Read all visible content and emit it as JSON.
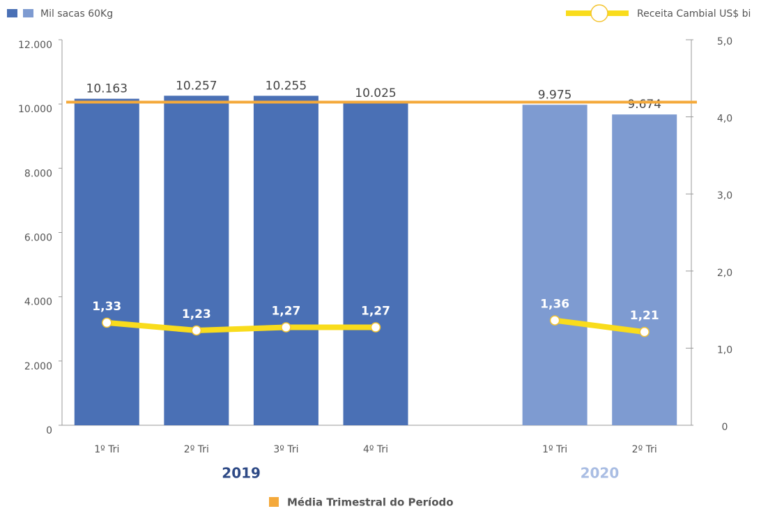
{
  "chart_data": {
    "type": "bar",
    "categories": [
      "1º Tri",
      "2º Tri",
      "3º Tri",
      "4º Tri",
      null,
      "1º Tri",
      "2º Tri"
    ],
    "groups": [
      {
        "label": "2019",
        "color": "#2e4a86"
      },
      {
        "label": "2020",
        "color": "#a9bde3"
      }
    ],
    "series": [
      {
        "name": "Mil sacas 60Kg",
        "type": "bar",
        "colors": [
          "#4a70b5",
          "#4a70b5",
          "#4a70b5",
          "#4a70b5",
          null,
          "#7e9bd1",
          "#7e9bd1"
        ],
        "values": [
          10163,
          10257,
          10255,
          10025,
          null,
          9975,
          9674
        ],
        "value_labels": [
          "10.163",
          "10.257",
          "10.255",
          "10.025",
          null,
          "9.975",
          "9.674"
        ]
      },
      {
        "name": "Receita Cambial US$ bi",
        "type": "line",
        "axis": "y2",
        "color": "#f9dc1c",
        "values": [
          1.33,
          1.23,
          1.27,
          1.27,
          null,
          1.36,
          1.21
        ],
        "value_labels": [
          "1,33",
          "1,23",
          "1,27",
          "1,27",
          null,
          "1,36",
          "1,21"
        ]
      }
    ],
    "average": {
      "name": "Média Trimestral do Período",
      "value": 10058,
      "color": "#f4a93b"
    },
    "ylim": [
      0,
      12000
    ],
    "yticks": [
      0,
      {
        "value": 2000,
        "label": "2.000"
      },
      {
        "value": 4000,
        "label": "4.000"
      },
      {
        "value": 6000,
        "label": "6.000"
      },
      {
        "value": 8000,
        "label": "8.000"
      },
      {
        "value": 10000,
        "label": "10.000"
      },
      {
        "value": 12000,
        "label": "12.000"
      }
    ],
    "y2lim": [
      0,
      5
    ],
    "y2ticks": [
      0,
      {
        "value": 1,
        "label": "1,0"
      },
      {
        "value": 2,
        "label": "2,0"
      },
      {
        "value": 3,
        "label": "3,0"
      },
      {
        "value": 4,
        "label": "4,0"
      },
      {
        "value": 5,
        "label": "5,0"
      }
    ]
  }
}
